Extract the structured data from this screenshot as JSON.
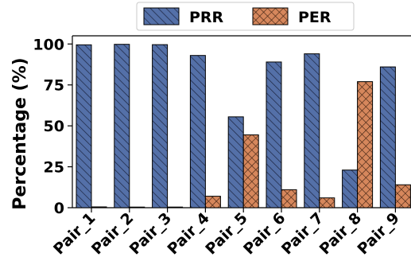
{
  "chart_data": {
    "type": "bar",
    "title": "",
    "xlabel": "",
    "ylabel": "Percentage (%)",
    "ylim": [
      0,
      105
    ],
    "yticks": [
      0,
      25,
      50,
      75,
      100
    ],
    "categories": [
      "Pair_1",
      "Pair_2",
      "Pair_3",
      "Pair_4",
      "Pair_5",
      "Pair_6",
      "Pair_7",
      "Pair_8",
      "Pair_9"
    ],
    "series": [
      {
        "name": "PRR",
        "values": [
          99.5,
          99.8,
          99.6,
          93,
          55.5,
          89,
          94,
          23,
          86
        ],
        "color": "#5470a8",
        "hatch": "diagonal"
      },
      {
        "name": "PER",
        "values": [
          0.5,
          0.2,
          0.4,
          7,
          44.5,
          11,
          6,
          77,
          14
        ],
        "color": "#d6875c",
        "hatch": "crosshatch"
      }
    ],
    "legend_position": "top-center",
    "grid": false
  }
}
